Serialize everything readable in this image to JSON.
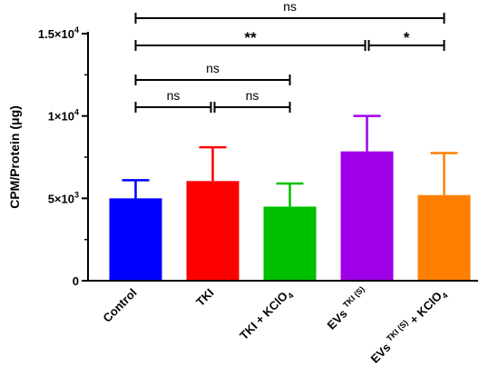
{
  "chart_data": {
    "type": "bar",
    "ylabel": "CPM/Protein (μg)",
    "ylim": [
      0,
      15000
    ],
    "yticks": [
      {
        "value": 0,
        "base": "0",
        "exp": ""
      },
      {
        "value": 5000,
        "base": "5×10",
        "exp": "3"
      },
      {
        "value": 10000,
        "base": "1×10",
        "exp": "4"
      },
      {
        "value": 15000,
        "base": "1.5×10",
        "exp": "4"
      }
    ],
    "categories": [
      {
        "parts": [
          {
            "t": "Control"
          }
        ],
        "color": "#0000ff",
        "value": 5000,
        "error": 1100
      },
      {
        "parts": [
          {
            "t": "TKI"
          }
        ],
        "color": "#ff0000",
        "value": 6050,
        "error": 2050
      },
      {
        "parts": [
          {
            "t": "TKI + KClO"
          },
          {
            "t": "4",
            "sub": true
          }
        ],
        "color": "#00c000",
        "value": 4500,
        "error": 1400
      },
      {
        "parts": [
          {
            "t": "EVs "
          },
          {
            "t": "TKI (S)",
            "sup": true
          }
        ],
        "color": "#a000e8",
        "value": 7850,
        "error": 2150
      },
      {
        "parts": [
          {
            "t": "EVs "
          },
          {
            "t": "TKI (S)",
            "sup": true
          },
          {
            "t": " + KClO"
          },
          {
            "t": "4",
            "sub": true
          }
        ],
        "color": "#ff8000",
        "value": 5200,
        "error": 2550
      }
    ],
    "significance": [
      {
        "from": 0,
        "to": 1,
        "label": "ns",
        "level": 0
      },
      {
        "from": 1,
        "to": 2,
        "label": "ns",
        "level": 0
      },
      {
        "from": 0,
        "to": 2,
        "label": "ns",
        "level": 1
      },
      {
        "from": 0,
        "to": 3,
        "label": "**",
        "level": 2
      },
      {
        "from": 3,
        "to": 4,
        "label": "*",
        "level": 2
      },
      {
        "from": 0,
        "to": 4,
        "label": "ns",
        "level": 3
      }
    ]
  }
}
